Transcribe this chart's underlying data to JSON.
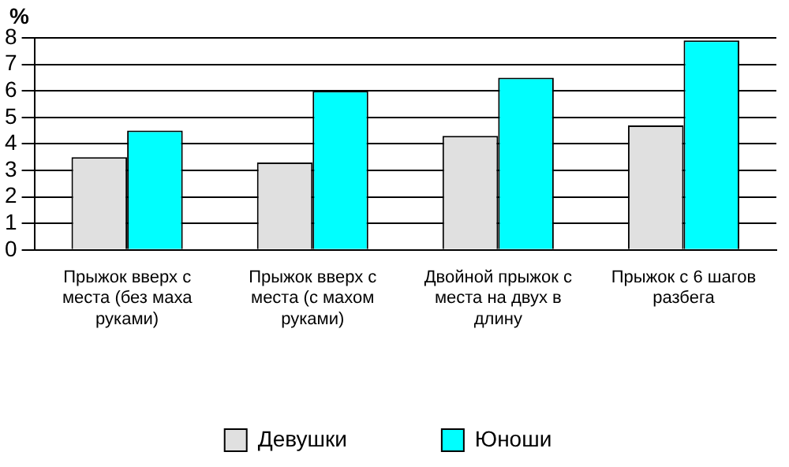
{
  "chart_data": {
    "type": "bar",
    "ylabel": "%",
    "categories": [
      "Прыжок вверх с места (без маха руками)",
      "Прыжок вверх с места (с махом руками)",
      "Двойной прыжок с места на двух в длину",
      "Прыжок с 6 шагов разбега"
    ],
    "series": [
      {
        "name": "Девушки",
        "color": "#e0e0e0",
        "values": [
          3.5,
          3.3,
          4.3,
          4.7
        ]
      },
      {
        "name": "Юноши",
        "color": "#00ffff",
        "values": [
          4.5,
          6.0,
          6.5,
          7.9
        ]
      }
    ],
    "ylim": [
      0,
      8
    ],
    "yticks": [
      0,
      1,
      2,
      3,
      4,
      5,
      6,
      7,
      8
    ],
    "grid": "y",
    "legend": "bottom"
  }
}
